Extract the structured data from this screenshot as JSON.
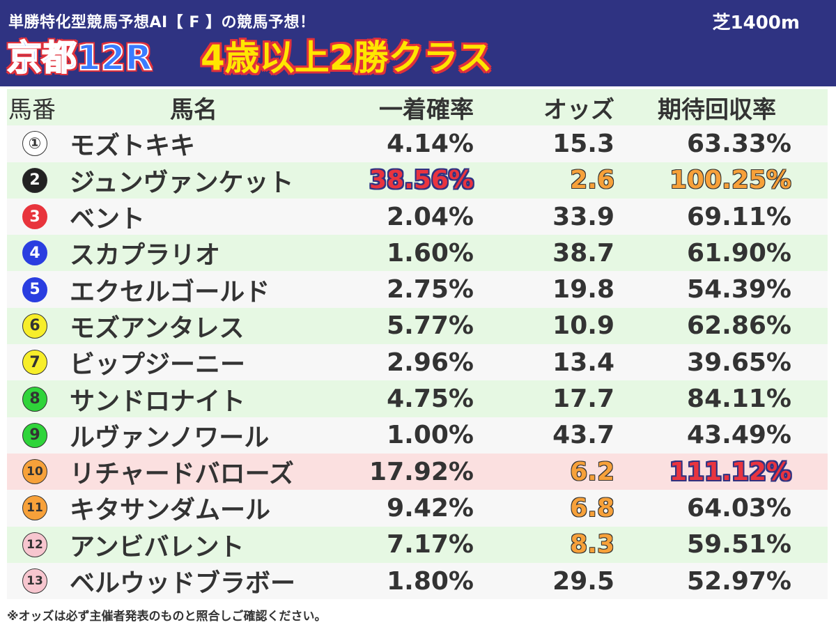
{
  "header": {
    "subtitle": "単勝特化型競馬予想AI【 F 】の競馬予想！",
    "course": "芝1400m",
    "race_name": "京都12R",
    "race_class": "4歳以上2勝クラス"
  },
  "columns": {
    "no": "馬番",
    "name": "馬名",
    "win_prob": "一着確率",
    "odds": "オッズ",
    "expected_return": "期待回収率"
  },
  "colors": {
    "header_bg": "#2f3382",
    "row_green": "#e6f8e3",
    "row_white": "#f7f7f7",
    "row_pink": "#fbe0e0",
    "highlight_orange": "#f7a13a",
    "highlight_red": "#e9343f"
  },
  "horses": [
    {
      "no": "①",
      "name": "モズトキキ",
      "win_prob": "4.14%",
      "odds": "15.3",
      "expected_return": "63.33%"
    },
    {
      "no": "2",
      "name": "ジュンヴァンケット",
      "win_prob": "38.56%",
      "odds": "2.6",
      "expected_return": "100.25%"
    },
    {
      "no": "3",
      "name": "ベント",
      "win_prob": "2.04%",
      "odds": "33.9",
      "expected_return": "69.11%"
    },
    {
      "no": "4",
      "name": "スカプラリオ",
      "win_prob": "1.60%",
      "odds": "38.7",
      "expected_return": "61.90%"
    },
    {
      "no": "5",
      "name": "エクセルゴールド",
      "win_prob": "2.75%",
      "odds": "19.8",
      "expected_return": "54.39%"
    },
    {
      "no": "6",
      "name": "モズアンタレス",
      "win_prob": "5.77%",
      "odds": "10.9",
      "expected_return": "62.86%"
    },
    {
      "no": "7",
      "name": "ビップジーニー",
      "win_prob": "2.96%",
      "odds": "13.4",
      "expected_return": "39.65%"
    },
    {
      "no": "8",
      "name": "サンドロナイト",
      "win_prob": "4.75%",
      "odds": "17.7",
      "expected_return": "84.11%"
    },
    {
      "no": "9",
      "name": "ルヴァンノワール",
      "win_prob": "1.00%",
      "odds": "43.7",
      "expected_return": "43.49%"
    },
    {
      "no": "10",
      "name": "リチャードバローズ",
      "win_prob": "17.92%",
      "odds": "6.2",
      "expected_return": "111.12%"
    },
    {
      "no": "11",
      "name": "キタサンダムール",
      "win_prob": "9.42%",
      "odds": "6.8",
      "expected_return": "64.03%"
    },
    {
      "no": "12",
      "name": "アンビバレント",
      "win_prob": "7.17%",
      "odds": "8.3",
      "expected_return": "59.51%"
    },
    {
      "no": "13",
      "name": "ベルウッドブラボー",
      "win_prob": "1.80%",
      "odds": "29.5",
      "expected_return": "52.97%"
    }
  ],
  "footnote": "※オッズは必ず主催者発表のものと照合しご確認ください。"
}
